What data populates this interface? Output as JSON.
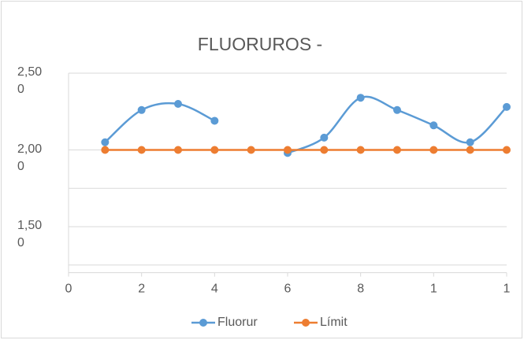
{
  "chart_data": {
    "type": "line",
    "title": "FLUORUROS -",
    "x": [
      1,
      2,
      3,
      4,
      5,
      6,
      7,
      8,
      9,
      10,
      11,
      12
    ],
    "series": [
      {
        "name": "Fluorur",
        "color": "#5b9bd5",
        "values": [
          2.05,
          2.26,
          2.3,
          2.19,
          null,
          1.98,
          2.08,
          2.34,
          2.26,
          2.16,
          2.05,
          2.28
        ]
      },
      {
        "name": "Límit",
        "color": "#ed7d31",
        "values": [
          2.0,
          2.0,
          2.0,
          2.0,
          2.0,
          2.0,
          2.0,
          2.0,
          2.0,
          2.0,
          2.0,
          2.0
        ]
      }
    ],
    "smooth": true,
    "xlim": [
      0,
      12
    ],
    "xticks": [
      0,
      2,
      4,
      6,
      8,
      {
        "value": 10,
        "label": "1"
      },
      {
        "value": 12,
        "label": "1"
      }
    ],
    "ylim": [
      1.2,
      2.5
    ],
    "yticks": [
      {
        "value": 2.5,
        "label": "2,50 0"
      },
      {
        "value": 2.0,
        "label": "2,00 0"
      },
      {
        "value": 1.5,
        "label": "1,50 0"
      }
    ],
    "ygrid": [
      2.5,
      2.0,
      1.75,
      1.5,
      1.25
    ],
    "legend": "bottom"
  }
}
